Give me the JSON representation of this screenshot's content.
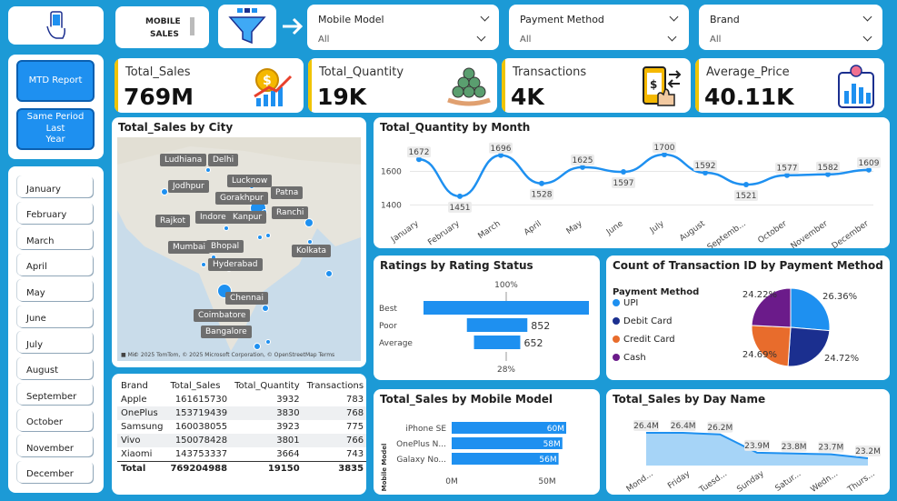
{
  "header": {
    "title_line1": "MOBILE",
    "title_line2": "SALES"
  },
  "slicers": [
    {
      "label": "Mobile Model",
      "value": "All"
    },
    {
      "label": "Payment Method",
      "value": "All"
    },
    {
      "label": "Brand",
      "value": "All"
    }
  ],
  "nav": {
    "mtd": "MTD Report",
    "spl_line1": "Same Period Last",
    "spl_line2": "Year"
  },
  "months": [
    "January",
    "February",
    "March",
    "April",
    "May",
    "June",
    "July",
    "August",
    "September",
    "October",
    "November",
    "December"
  ],
  "kpis": [
    {
      "title": "Total_Sales",
      "value": "769M"
    },
    {
      "title": "Total_Quantity",
      "value": "19K"
    },
    {
      "title": "Transactions",
      "value": "4K"
    },
    {
      "title": "Average_Price",
      "value": "40.11K"
    }
  ],
  "map": {
    "title": "Total_Sales by City",
    "cities": [
      "Ludhiana",
      "Delhi",
      "Jodhpur",
      "Lucknow",
      "Gorakhpur",
      "Patna",
      "Rajkot",
      "Indore",
      "Kanpur",
      "Ranchi",
      "Mumbai",
      "Bhopal",
      "Kolkata",
      "Hyderabad",
      "Chennai",
      "Coimbatore",
      "Bangalore"
    ],
    "attribution": "© 2025 TomTom, © 2025 Microsoft Corporation, © OpenStreetMap  Terms",
    "logo": "Mic"
  },
  "table": {
    "headers": [
      "Brand",
      "Total_Sales",
      "Total_Quantity",
      "Transactions"
    ],
    "rows": [
      [
        "Apple",
        "161615730",
        "3932",
        "783"
      ],
      [
        "OnePlus",
        "153719439",
        "3830",
        "768"
      ],
      [
        "Samsung",
        "160038055",
        "3923",
        "775"
      ],
      [
        "Vivo",
        "150078428",
        "3801",
        "766"
      ],
      [
        "Xiaomi",
        "143753337",
        "3664",
        "743"
      ]
    ],
    "total": [
      "Total",
      "769204988",
      "19150",
      "3835"
    ]
  },
  "colors": {
    "accent": "#1e90f0",
    "background": "#1c9ad6",
    "kpi_bar": "#f0c400"
  },
  "chart_data": [
    {
      "type": "line",
      "title": "Total_Quantity by Month",
      "categories": [
        "January",
        "February",
        "March",
        "April",
        "May",
        "June",
        "July",
        "August",
        "Septemb...",
        "October",
        "November",
        "December"
      ],
      "values": [
        1672,
        1451,
        1696,
        1528,
        1625,
        1597,
        1700,
        1592,
        1521,
        1577,
        1582,
        1609
      ],
      "yticks": [
        "1600",
        "1400"
      ],
      "ylim": [
        1380,
        1760
      ]
    },
    {
      "type": "bar",
      "title": "Ratings by Rating Status",
      "categories": [
        "Best",
        "Poor",
        "Average"
      ],
      "values": [
        2331,
        852,
        652
      ],
      "data_labels": [
        "",
        "852",
        "652"
      ],
      "top_label": "100%",
      "bottom_label": "28%"
    },
    {
      "type": "pie",
      "title": "Count of Transaction ID by Payment Method",
      "legend_title": "Payment Method",
      "categories": [
        "UPI",
        "Debit Card",
        "Credit Card",
        "Cash"
      ],
      "values": [
        26.36,
        24.72,
        24.69,
        24.22
      ],
      "data_labels": [
        "26.36%",
        "24.72%",
        "24.69%",
        "24.22%"
      ],
      "colors": [
        "#1e90f0",
        "#1b2f8f",
        "#e86c2c",
        "#6b1b8a"
      ]
    },
    {
      "type": "bar",
      "title": "Total_Sales by Mobile Model",
      "ylabel": "Mobile Model",
      "categories": [
        "iPhone SE",
        "OnePlus N...",
        "Galaxy No..."
      ],
      "values": [
        60,
        58,
        56
      ],
      "data_labels": [
        "60M",
        "58M",
        "56M"
      ],
      "xticks": [
        "0M",
        "50M"
      ]
    },
    {
      "type": "area",
      "title": "Total_Sales by Day Name",
      "categories": [
        "Mond...",
        "Friday",
        "Tuesd...",
        "Sunday",
        "Satur...",
        "Wedn...",
        "Thurs..."
      ],
      "values": [
        26.4,
        26.4,
        26.2,
        23.9,
        23.8,
        23.7,
        23.2
      ],
      "data_labels": [
        "26.4M",
        "26.4M",
        "26.2M",
        "23.9M",
        "23.8M",
        "23.7M",
        "23.2M"
      ]
    }
  ]
}
